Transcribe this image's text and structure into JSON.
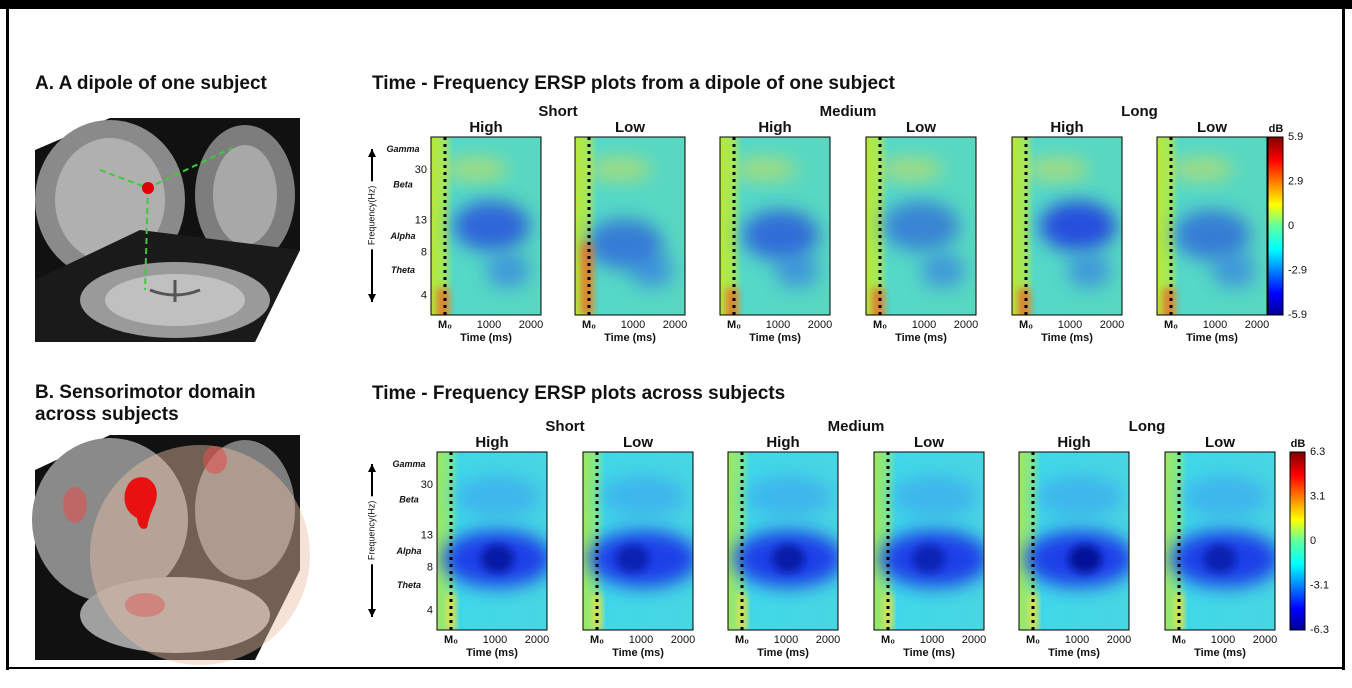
{
  "panels": [
    {
      "label": [
        "A.  A dipole of one subject"
      ],
      "plot_title": "Time - Frequency ERSP plots from a dipole of one subject",
      "colorbar": {
        "unit": "dB",
        "ticks": [
          "5.9",
          "2.9",
          "0",
          "-2.9",
          "-5.9"
        ]
      }
    },
    {
      "label": [
        "B.  Sensorimotor domain",
        "across subjects"
      ],
      "plot_title": "Time - Frequency ERSP plots across subjects",
      "colorbar": {
        "unit": "dB",
        "ticks": [
          "6.3",
          "3.1",
          "0",
          "-3.1",
          "-6.3"
        ]
      }
    }
  ],
  "groups": [
    {
      "name": "Short",
      "conditions": [
        "High",
        "Low"
      ]
    },
    {
      "name": "Medium",
      "conditions": [
        "High",
        "Low"
      ]
    },
    {
      "name": "Long",
      "conditions": [
        "High",
        "Low"
      ]
    }
  ],
  "y_axis": {
    "title": "Frequency(Hz)",
    "bands": [
      "Gamma",
      "Beta",
      "Alpha",
      "Theta"
    ],
    "ticks": [
      "30",
      "13",
      "8",
      "4"
    ]
  },
  "x_axis": {
    "title": "Time (ms)",
    "onset": "M₀",
    "ticks": [
      "1000",
      "2000"
    ]
  }
}
